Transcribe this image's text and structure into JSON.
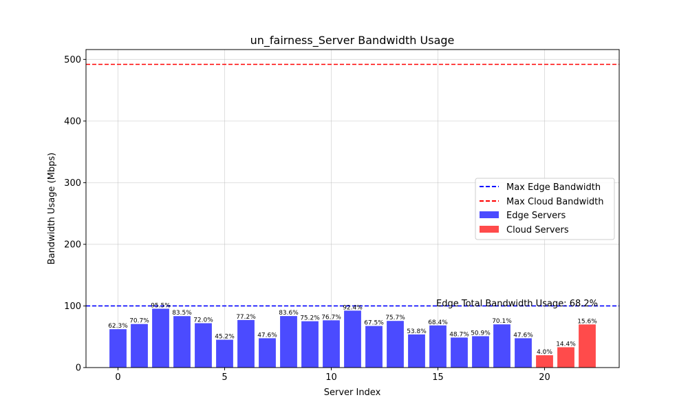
{
  "chart_data": {
    "type": "bar",
    "title": "un_fairness_Server Bandwidth Usage",
    "xlabel": "Server Index",
    "ylabel": "Bandwidth Usage (Mbps)",
    "xlim": [
      -1.5,
      23.5
    ],
    "ylim": [
      0,
      516
    ],
    "xticks": [
      0,
      5,
      10,
      15,
      20
    ],
    "yticks": [
      0,
      100,
      200,
      300,
      400,
      500
    ],
    "grid": true,
    "edge_bar_color": "#4b4bff",
    "cloud_bar_color": "#ff4b4b",
    "series": [
      {
        "name": "Edge Servers",
        "x": [
          0,
          1,
          2,
          3,
          4,
          5,
          6,
          7,
          8,
          9,
          10,
          11,
          12,
          13,
          14,
          15,
          16,
          17,
          18,
          19
        ],
        "values": [
          62.3,
          70.7,
          95.5,
          83.5,
          72.0,
          45.2,
          77.2,
          47.6,
          83.6,
          75.2,
          76.7,
          92.4,
          67.5,
          75.7,
          53.8,
          68.4,
          48.7,
          50.9,
          70.1,
          47.6
        ],
        "bar_labels": [
          "62.3%",
          "70.7%",
          "95.5%",
          "83.5%",
          "72.0%",
          "45.2%",
          "77.2%",
          "47.6%",
          "83.6%",
          "75.2%",
          "76.7%",
          "92.4%",
          "67.5%",
          "75.7%",
          "53.8%",
          "68.4%",
          "48.7%",
          "50.9%",
          "70.1%",
          "47.6%"
        ]
      },
      {
        "name": "Cloud Servers",
        "x": [
          20,
          21,
          22
        ],
        "values": [
          20,
          33,
          70
        ],
        "bar_labels": [
          "4.0%",
          "14.4%",
          "15.6%"
        ]
      }
    ],
    "reference_lines": [
      {
        "name": "Max Edge Bandwidth",
        "y": 100,
        "color": "#0000ff",
        "style": "dashed"
      },
      {
        "name": "Max Cloud Bandwidth",
        "y": 492,
        "color": "#ff0000",
        "style": "dashed"
      }
    ],
    "annotation": "Edge Total Bandwidth Usage: 68.2%",
    "legend": {
      "position": "center-right",
      "entries": [
        {
          "label": "Max Edge Bandwidth",
          "kind": "line",
          "color": "#0000ff"
        },
        {
          "label": "Max Cloud Bandwidth",
          "kind": "line",
          "color": "#ff0000"
        },
        {
          "label": "Edge Servers",
          "kind": "patch",
          "color": "#4b4bff"
        },
        {
          "label": "Cloud Servers",
          "kind": "patch",
          "color": "#ff4b4b"
        }
      ]
    }
  }
}
